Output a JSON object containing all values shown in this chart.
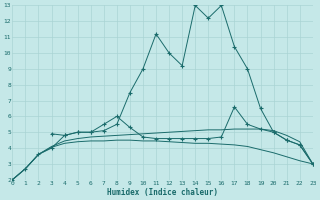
{
  "xlabel": "Humidex (Indice chaleur)",
  "background_color": "#c5e8e8",
  "grid_color": "#aad4d4",
  "line_color": "#1a6b6b",
  "xlim": [
    0,
    23
  ],
  "ylim": [
    2,
    13
  ],
  "xticks": [
    0,
    1,
    2,
    3,
    4,
    5,
    6,
    7,
    8,
    9,
    10,
    11,
    12,
    13,
    14,
    15,
    16,
    17,
    18,
    19,
    20,
    21,
    22,
    23
  ],
  "yticks": [
    2,
    3,
    4,
    5,
    6,
    7,
    8,
    9,
    10,
    11,
    12,
    13
  ],
  "line1_x": [
    0,
    1,
    2,
    3,
    4,
    5,
    6,
    7,
    8,
    9,
    10,
    11,
    12,
    13,
    14,
    15,
    16,
    17,
    18,
    19,
    20,
    21,
    22,
    23
  ],
  "line1_y": [
    2.0,
    2.7,
    3.6,
    4.0,
    4.8,
    5.0,
    5.0,
    5.1,
    5.5,
    7.5,
    9.0,
    11.2,
    10.0,
    9.2,
    13.0,
    12.2,
    13.0,
    10.4,
    9.0,
    6.5,
    5.0,
    4.5,
    4.2,
    3.0
  ],
  "line2_x": [
    3,
    4,
    5,
    6,
    7,
    8,
    9,
    10,
    11,
    12,
    13,
    14,
    15,
    16,
    17,
    18,
    19,
    20,
    21,
    22,
    23
  ],
  "line2_y": [
    4.9,
    4.8,
    5.0,
    5.0,
    5.5,
    6.0,
    5.3,
    4.7,
    4.6,
    4.6,
    4.6,
    4.6,
    4.6,
    4.7,
    6.6,
    5.5,
    5.2,
    5.0,
    4.5,
    4.2,
    3.0
  ],
  "line3_x": [
    0,
    1,
    2,
    3,
    4,
    5,
    6,
    7,
    8,
    9,
    10,
    11,
    12,
    13,
    14,
    15,
    16,
    17,
    18,
    19,
    20,
    21,
    22,
    23
  ],
  "line3_y": [
    2.0,
    2.7,
    3.6,
    4.1,
    4.45,
    4.6,
    4.7,
    4.75,
    4.8,
    4.85,
    4.9,
    4.95,
    5.0,
    5.05,
    5.1,
    5.15,
    5.15,
    5.2,
    5.2,
    5.2,
    5.1,
    4.8,
    4.4,
    3.0
  ],
  "line4_x": [
    0,
    1,
    2,
    3,
    4,
    5,
    6,
    7,
    8,
    9,
    10,
    11,
    12,
    13,
    14,
    15,
    16,
    17,
    18,
    19,
    20,
    21,
    22,
    23
  ],
  "line4_y": [
    2.0,
    2.7,
    3.6,
    4.05,
    4.3,
    4.4,
    4.45,
    4.45,
    4.5,
    4.5,
    4.45,
    4.45,
    4.4,
    4.35,
    4.3,
    4.3,
    4.25,
    4.2,
    4.1,
    3.9,
    3.7,
    3.45,
    3.2,
    3.0
  ]
}
